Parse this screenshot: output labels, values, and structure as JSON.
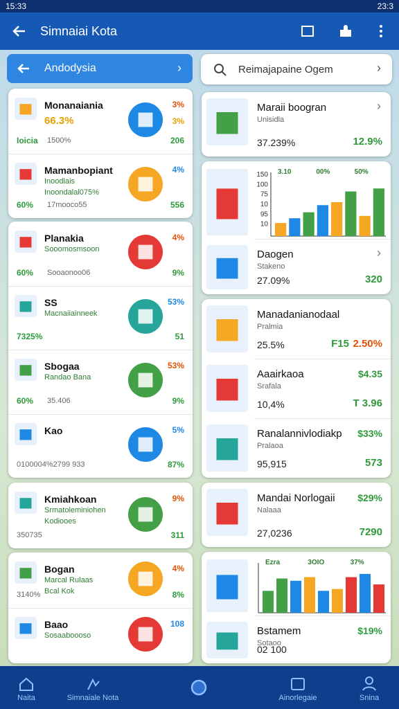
{
  "status_bar": {
    "time": "15:33",
    "battery": "23:3"
  },
  "app_bar": {
    "title": "Simnaiai Kota"
  },
  "left_panel": {
    "header": "Andodysia",
    "cards": [
      {
        "items": [
          {
            "title": "Monanaiania",
            "subtitle": "66.3%",
            "stat": "Ioicia",
            "note": "1500%",
            "top_value": "3%",
            "mid_value": "3%",
            "bottom_value": "206"
          },
          {
            "title": "Mamanbopiant",
            "subtitle": "Inoodlais",
            "line": "Inoondalal075%",
            "stat": "60%",
            "note": "17mooco55",
            "top_value": "4%",
            "bottom_value": "556"
          }
        ]
      },
      {
        "items": [
          {
            "title": "Planakia",
            "subtitle": "Sooomosmsoon",
            "stat": "60%",
            "note": "Sooaonoo06",
            "top_value": "4%",
            "bottom_value": "9%"
          },
          {
            "title": "SS",
            "subtitle": "Macnaiiainneek",
            "stat": "7325%",
            "top_value": "53%",
            "bottom_value": "51"
          },
          {
            "title": "Sbogaa",
            "subtitle": "Randao Bana",
            "stat": "60%",
            "note": "35.406",
            "top_value": "53%",
            "bottom_value": "9%"
          },
          {
            "title": "Kao",
            "note": "0100004%2799 933",
            "top_value": "5%",
            "bottom_value": "87%"
          }
        ]
      },
      {
        "items": [
          {
            "title": "Kmiahkoan",
            "subtitle": "Srmatoleminiohen",
            "line": "Kodiooes",
            "note": "350735",
            "top_value": "9%",
            "bottom_value": "311"
          }
        ]
      },
      {
        "items": [
          {
            "title": "Bogan",
            "subtitle": "Marcal Rulaas",
            "line": "Bcal Kok",
            "note": "3140%",
            "top_value": "4%",
            "bottom_value": "8%"
          },
          {
            "title": "Baao",
            "subtitle": "Sosaaboooso",
            "top_value": "108"
          }
        ]
      }
    ]
  },
  "right_panel": {
    "search": "Reimajapaine Ogem",
    "cards": [
      {
        "items": [
          {
            "title": "Maraii boogran",
            "subtitle": "Unisidla",
            "value": "37.239%",
            "right_value": "12.9%"
          }
        ]
      },
      {
        "chart": {
          "axis_labels": [
            "150",
            "100",
            "75",
            "10",
            "95",
            "10"
          ],
          "annotations": [
            "3.10",
            "00%",
            "50%"
          ],
          "ylim": [
            0,
            100
          ],
          "bars": [
            {
              "value": 22,
              "color": "#f5a623"
            },
            {
              "value": 30,
              "color": "#1e88e5"
            },
            {
              "value": 40,
              "color": "#43a047"
            },
            {
              "value": 52,
              "color": "#1e88e5"
            },
            {
              "value": 57,
              "color": "#f5a623"
            },
            {
              "value": 75,
              "color": "#43a047"
            },
            {
              "value": 34,
              "color": "#f5a623"
            },
            {
              "value": 80,
              "color": "#43a047"
            }
          ]
        },
        "items": [
          {
            "title": "Daogen",
            "subtitle": "Stakeno",
            "value": "27.09%",
            "right_value": "320"
          }
        ]
      },
      {
        "items": [
          {
            "title": "Manadanianodaal",
            "subtitle": "Pralmia",
            "value": "25.5%",
            "right_value": "F15",
            "right_value2": "2.50%"
          },
          {
            "title": "Aaairkaoa",
            "subtitle": "Srafala",
            "value": "10,4%",
            "right_top": "$4.35",
            "right_value": "T 3.96"
          },
          {
            "title": "Ranalannivlodiakp",
            "subtitle": "Pralaoa",
            "value": "95,915",
            "right_top": "$33%",
            "right_value": "573"
          }
        ]
      },
      {
        "items": [
          {
            "title": "Mandai Norlogaii",
            "subtitle": "Nalaaa",
            "value": "27,0236",
            "right_top": "$29%",
            "right_value": "7290"
          }
        ]
      },
      {
        "chart": {
          "axis_labels": [],
          "annotations": [
            "Ezra",
            "3OIO",
            "37%"
          ],
          "ylim": [
            0,
            100
          ],
          "bars": [
            {
              "value": 48,
              "color": "#43a047"
            },
            {
              "value": 75,
              "color": "#43a047"
            },
            {
              "value": 70,
              "color": "#1e88e5"
            },
            {
              "value": 78,
              "color": "#f5a623"
            },
            {
              "value": 48,
              "color": "#1e88e5"
            },
            {
              "value": 52,
              "color": "#f5a623"
            },
            {
              "value": 78,
              "color": "#e53935"
            },
            {
              "value": 85,
              "color": "#1e88e5"
            },
            {
              "value": 62,
              "color": "#e53935"
            }
          ]
        },
        "items": [
          {
            "title": "Bstamem",
            "subtitle": "Sotaoo",
            "right_top": "$19%",
            "value": "02 100"
          }
        ]
      }
    ]
  },
  "bottom_nav": {
    "items": [
      "Naita",
      "Simnaiale Nota",
      "Ainorlegaie",
      "Snina"
    ]
  }
}
